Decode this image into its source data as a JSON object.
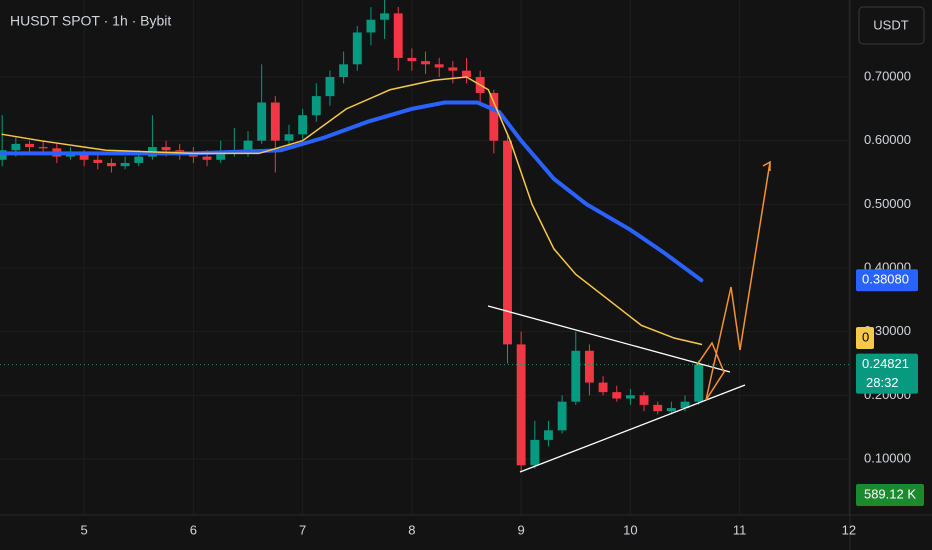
{
  "chart_data": {
    "type": "candlestick",
    "title": "HUSDT SPOT · 1h · Bybit",
    "currency": "USDT",
    "up_color": "#089981",
    "down_color": "#f23645",
    "xlim": [
      4.23,
      12.01
    ],
    "xticks": [
      5,
      6,
      7,
      8,
      9,
      10,
      11,
      12
    ],
    "ylim": [
      0.012,
      0.821
    ],
    "yticks": [
      {
        "value": 0.1,
        "label": "0.10000"
      },
      {
        "value": 0.2,
        "label": "0.20000"
      },
      {
        "value": 0.3,
        "label": "0.30000"
      },
      {
        "value": 0.4,
        "label": "0.40000"
      },
      {
        "value": 0.5,
        "label": "0.50000"
      },
      {
        "value": 0.6,
        "label": "0.60000"
      },
      {
        "value": 0.7,
        "label": "0.70000"
      }
    ],
    "x": [
      4.25,
      4.375,
      4.5,
      4.625,
      4.75,
      4.875,
      5.0,
      5.125,
      5.25,
      5.375,
      5.5,
      5.625,
      5.75,
      5.875,
      6.0,
      6.125,
      6.25,
      6.375,
      6.5,
      6.625,
      6.75,
      6.875,
      7.0,
      7.125,
      7.25,
      7.375,
      7.5,
      7.625,
      7.75,
      7.875,
      8.0,
      8.125,
      8.25,
      8.375,
      8.5,
      8.625,
      8.75,
      8.875,
      9.0,
      9.125,
      9.25,
      9.375,
      9.5,
      9.625,
      9.75,
      9.875,
      10.0,
      10.125,
      10.25,
      10.375,
      10.5,
      10.625
    ],
    "candles": [
      [
        0.57,
        0.64,
        0.56,
        0.585
      ],
      [
        0.585,
        0.605,
        0.575,
        0.595
      ],
      [
        0.595,
        0.6,
        0.58,
        0.59
      ],
      [
        0.59,
        0.6,
        0.578,
        0.588
      ],
      [
        0.588,
        0.595,
        0.565,
        0.575
      ],
      [
        0.575,
        0.59,
        0.57,
        0.58
      ],
      [
        0.58,
        0.585,
        0.56,
        0.57
      ],
      [
        0.57,
        0.58,
        0.555,
        0.565
      ],
      [
        0.565,
        0.572,
        0.55,
        0.56
      ],
      [
        0.56,
        0.575,
        0.555,
        0.565
      ],
      [
        0.565,
        0.585,
        0.56,
        0.575
      ],
      [
        0.575,
        0.64,
        0.57,
        0.59
      ],
      [
        0.59,
        0.6,
        0.575,
        0.585
      ],
      [
        0.585,
        0.595,
        0.57,
        0.58
      ],
      [
        0.58,
        0.59,
        0.565,
        0.575
      ],
      [
        0.575,
        0.585,
        0.56,
        0.57
      ],
      [
        0.57,
        0.6,
        0.565,
        0.58
      ],
      [
        0.58,
        0.62,
        0.575,
        0.585
      ],
      [
        0.585,
        0.615,
        0.575,
        0.6
      ],
      [
        0.6,
        0.72,
        0.595,
        0.66
      ],
      [
        0.66,
        0.67,
        0.55,
        0.6
      ],
      [
        0.6,
        0.625,
        0.59,
        0.61
      ],
      [
        0.61,
        0.65,
        0.6,
        0.64
      ],
      [
        0.64,
        0.69,
        0.63,
        0.67
      ],
      [
        0.67,
        0.71,
        0.655,
        0.7
      ],
      [
        0.7,
        0.74,
        0.69,
        0.72
      ],
      [
        0.72,
        0.78,
        0.71,
        0.77
      ],
      [
        0.77,
        0.81,
        0.75,
        0.79
      ],
      [
        0.79,
        0.83,
        0.76,
        0.8
      ],
      [
        0.8,
        0.81,
        0.71,
        0.73
      ],
      [
        0.73,
        0.745,
        0.71,
        0.725
      ],
      [
        0.725,
        0.74,
        0.705,
        0.72
      ],
      [
        0.72,
        0.73,
        0.7,
        0.715
      ],
      [
        0.715,
        0.725,
        0.69,
        0.71
      ],
      [
        0.71,
        0.73,
        0.69,
        0.7
      ],
      [
        0.7,
        0.71,
        0.66,
        0.675
      ],
      [
        0.675,
        0.68,
        0.58,
        0.6
      ],
      [
        0.6,
        0.61,
        0.25,
        0.28
      ],
      [
        0.28,
        0.3,
        0.08,
        0.09
      ],
      [
        0.09,
        0.16,
        0.085,
        0.13
      ],
      [
        0.13,
        0.16,
        0.12,
        0.145
      ],
      [
        0.145,
        0.2,
        0.14,
        0.19
      ],
      [
        0.19,
        0.3,
        0.185,
        0.27
      ],
      [
        0.27,
        0.28,
        0.2,
        0.22
      ],
      [
        0.22,
        0.23,
        0.2,
        0.205
      ],
      [
        0.205,
        0.215,
        0.19,
        0.195
      ],
      [
        0.195,
        0.21,
        0.185,
        0.2
      ],
      [
        0.2,
        0.205,
        0.175,
        0.185
      ],
      [
        0.185,
        0.19,
        0.17,
        0.175
      ],
      [
        0.175,
        0.19,
        0.17,
        0.18
      ],
      [
        0.18,
        0.2,
        0.175,
        0.19
      ],
      [
        0.19,
        0.255,
        0.185,
        0.24821
      ]
    ],
    "series": [
      {
        "name": "MA slow",
        "color": "#2962ff",
        "x": [
          4.25,
          5.0,
          6.0,
          6.8,
          7.2,
          7.6,
          8.0,
          8.3,
          8.6,
          8.8,
          9.0,
          9.3,
          9.6,
          10.0,
          10.3,
          10.65
        ],
        "values": [
          0.58,
          0.58,
          0.58,
          0.585,
          0.605,
          0.63,
          0.65,
          0.66,
          0.66,
          0.645,
          0.6,
          0.54,
          0.5,
          0.46,
          0.425,
          0.3808
        ]
      },
      {
        "name": "MA fast",
        "color": "#f7c948",
        "x": [
          4.25,
          4.6,
          5.2,
          6.0,
          6.6,
          7.0,
          7.4,
          7.8,
          8.2,
          8.5,
          8.7,
          8.9,
          9.1,
          9.3,
          9.5,
          9.8,
          10.1,
          10.4,
          10.65
        ],
        "values": [
          0.61,
          0.6,
          0.585,
          0.58,
          0.58,
          0.6,
          0.65,
          0.68,
          0.695,
          0.7,
          0.68,
          0.6,
          0.5,
          0.43,
          0.39,
          0.35,
          0.31,
          0.29,
          0.28
        ]
      }
    ],
    "last_price": 0.24821,
    "countdown": "28:32",
    "ma_tag": {
      "value": 0.29,
      "label": "0"
    },
    "slow_tag": {
      "value": 0.3808,
      "label": "0.38080"
    },
    "volume_tag": "589.12 K"
  }
}
